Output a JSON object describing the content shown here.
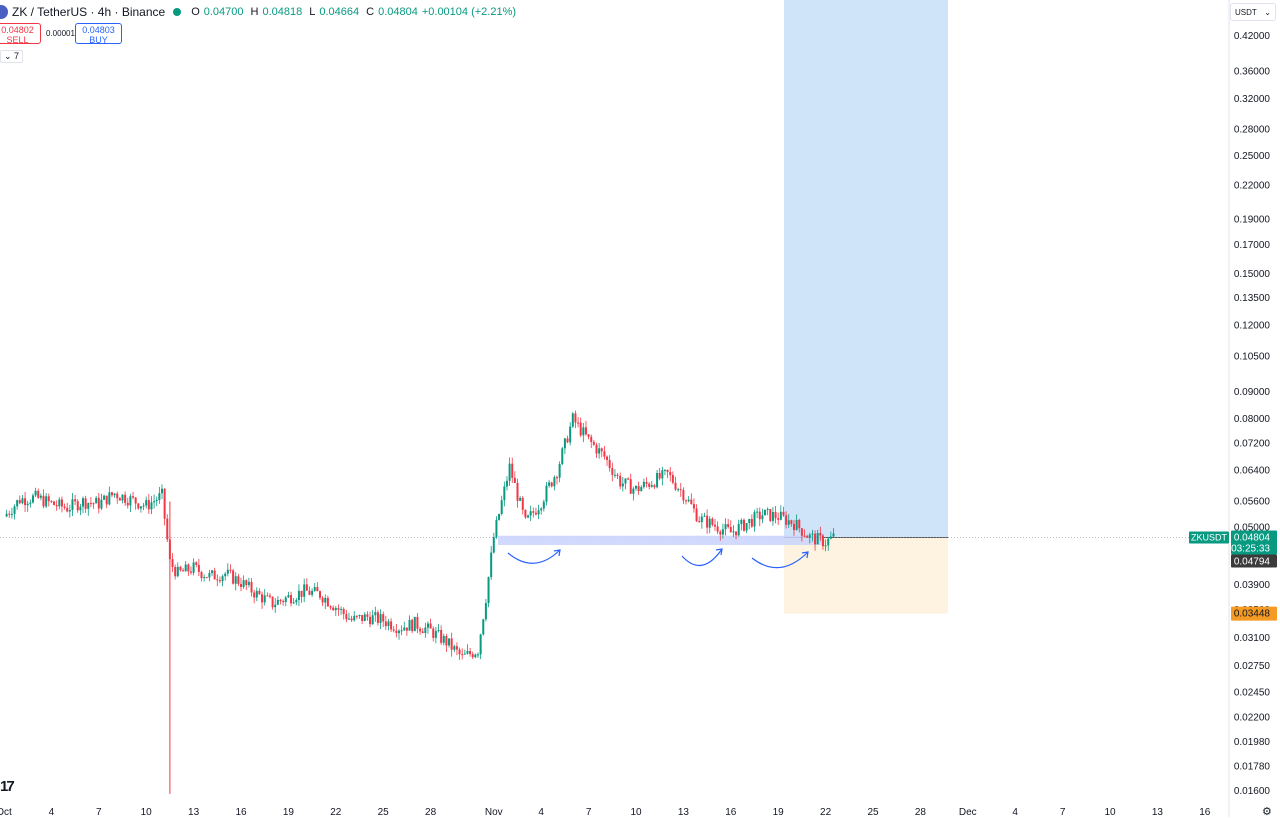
{
  "header": {
    "symbol": "ZK / TetherUS · 4h · Binance",
    "o_label": "O",
    "o_value": "0.04700",
    "h_label": "H",
    "h_value": "0.04818",
    "l_label": "L",
    "l_value": "0.04664",
    "c_label": "C",
    "c_value": "0.04804",
    "change": "+0.00104 (+2.21%)"
  },
  "trade": {
    "sell_price": "0.04802",
    "sell_label": "SELL",
    "spread": "0.00001",
    "buy_price": "0.04803",
    "buy_label": "BUY"
  },
  "indicators_toggle": "7",
  "currency": "USDT",
  "chart_data": {
    "type": "candlestick",
    "symbol_tag": "ZKUSDT",
    "last_price": "0.04804",
    "countdown": "03:25:33",
    "price_marker": "0.04794",
    "stop_marker": "0.03448",
    "y_ticks": [
      "0.42000",
      "0.36000",
      "0.32000",
      "0.28000",
      "0.25000",
      "0.22000",
      "0.19000",
      "0.17000",
      "0.15000",
      "0.13500",
      "0.12000",
      "0.10500",
      "0.09000",
      "0.08000",
      "0.07200",
      "0.06400",
      "0.05600",
      "0.05000",
      "0.03900",
      "0.03500",
      "0.03100",
      "0.02750",
      "0.02450",
      "0.02200",
      "0.01980",
      "0.01780",
      "0.01600"
    ],
    "x_ticks": [
      "Oct",
      "4",
      "7",
      "10",
      "13",
      "16",
      "19",
      "22",
      "25",
      "28",
      "Nov",
      "4",
      "7",
      "10",
      "13",
      "16",
      "19",
      "22",
      "25",
      "28",
      "Dec",
      "4",
      "7",
      "10",
      "13",
      "16"
    ],
    "y_scale": "log",
    "long_position": {
      "entry": 0.04794,
      "target": 0.42,
      "stop": 0.03448
    },
    "support_zone": [
      0.047,
      0.0483
    ],
    "series": [
      {
        "day": 0,
        "close": 0.0525
      },
      {
        "day": 1,
        "close": 0.0565
      },
      {
        "day": 2,
        "close": 0.057
      },
      {
        "day": 3,
        "close": 0.0555
      },
      {
        "day": 4,
        "close": 0.0545
      },
      {
        "day": 5,
        "close": 0.056
      },
      {
        "day": 6,
        "close": 0.0555
      },
      {
        "day": 7,
        "close": 0.058
      },
      {
        "day": 8,
        "close": 0.0565
      },
      {
        "day": 9,
        "close": 0.055
      },
      {
        "day": 10,
        "close": 0.0575
      },
      {
        "day": 10.5,
        "close": 0.043
      },
      {
        "day": 11,
        "close": 0.041
      },
      {
        "day": 12,
        "close": 0.042
      },
      {
        "day": 13,
        "close": 0.0405
      },
      {
        "day": 14,
        "close": 0.041
      },
      {
        "day": 15,
        "close": 0.0395
      },
      {
        "day": 16,
        "close": 0.0375
      },
      {
        "day": 17,
        "close": 0.036
      },
      {
        "day": 18,
        "close": 0.037
      },
      {
        "day": 19,
        "close": 0.038
      },
      {
        "day": 20,
        "close": 0.0375
      },
      {
        "day": 21,
        "close": 0.0355
      },
      {
        "day": 22,
        "close": 0.0335
      },
      {
        "day": 23,
        "close": 0.034
      },
      {
        "day": 24,
        "close": 0.0335
      },
      {
        "day": 25,
        "close": 0.0325
      },
      {
        "day": 26,
        "close": 0.033
      },
      {
        "day": 27,
        "close": 0.032
      },
      {
        "day": 28,
        "close": 0.0305
      },
      {
        "day": 29,
        "close": 0.0285
      },
      {
        "day": 30,
        "close": 0.0295
      },
      {
        "day": 30.5,
        "close": 0.037
      },
      {
        "day": 31,
        "close": 0.048
      },
      {
        "day": 32,
        "close": 0.065
      },
      {
        "day": 33,
        "close": 0.051
      },
      {
        "day": 34,
        "close": 0.056
      },
      {
        "day": 35,
        "close": 0.064
      },
      {
        "day": 36,
        "close": 0.08
      },
      {
        "day": 37,
        "close": 0.073
      },
      {
        "day": 38,
        "close": 0.068
      },
      {
        "day": 39,
        "close": 0.061
      },
      {
        "day": 40,
        "close": 0.059
      },
      {
        "day": 41,
        "close": 0.061
      },
      {
        "day": 42,
        "close": 0.063
      },
      {
        "day": 43,
        "close": 0.058
      },
      {
        "day": 44,
        "close": 0.052
      },
      {
        "day": 45,
        "close": 0.0505
      },
      {
        "day": 46,
        "close": 0.049
      },
      {
        "day": 47,
        "close": 0.051
      },
      {
        "day": 48,
        "close": 0.053
      },
      {
        "day": 49,
        "close": 0.0525
      },
      {
        "day": 50,
        "close": 0.051
      },
      {
        "day": 51,
        "close": 0.048
      },
      {
        "day": 52,
        "close": 0.047
      },
      {
        "day": 52.5,
        "close": 0.048
      }
    ]
  }
}
